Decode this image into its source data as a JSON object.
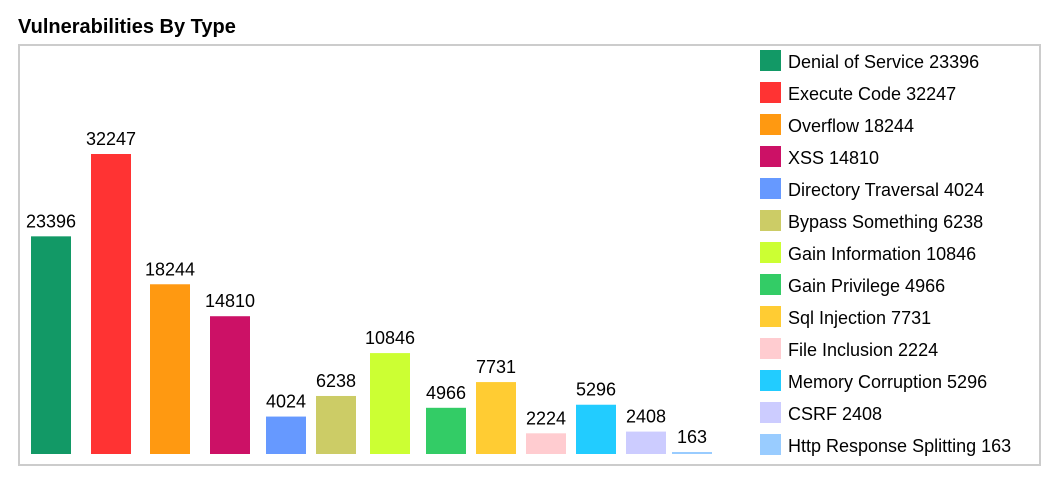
{
  "title": "Vulnerabilities By Type",
  "chart_data": {
    "type": "bar",
    "title": "Vulnerabilities By Type",
    "categories": [
      "Denial of Service",
      "Execute Code",
      "Overflow",
      "XSS",
      "Directory Traversal",
      "Bypass Something",
      "Gain Information",
      "Gain Privilege",
      "Sql Injection",
      "File Inclusion",
      "Memory Corruption",
      "CSRF",
      "Http Response Splitting"
    ],
    "values": [
      23396,
      32247,
      18244,
      14810,
      4024,
      6238,
      10846,
      4966,
      7731,
      2224,
      5296,
      2408,
      163
    ],
    "legend_labels": [
      "Denial of Service 23396",
      "Execute Code 32247",
      "Overflow 18244",
      "XSS 14810",
      "Directory Traversal 4024",
      "Bypass Something 6238",
      "Gain Information 10846",
      "Gain Privilege 4966",
      "Sql Injection 7731",
      "File Inclusion 2224",
      "Memory Corruption 5296",
      "CSRF 2408",
      "Http Response Splitting 163"
    ],
    "colors": [
      "#129966",
      "#ff3333",
      "#ff9911",
      "#cc1166",
      "#6699ff",
      "#cccc66",
      "#ccff33",
      "#33cc66",
      "#ffcc33",
      "#ffccd0",
      "#22ccff",
      "#ccccff",
      "#99ccff"
    ],
    "legend_position": "right",
    "grid": false
  }
}
